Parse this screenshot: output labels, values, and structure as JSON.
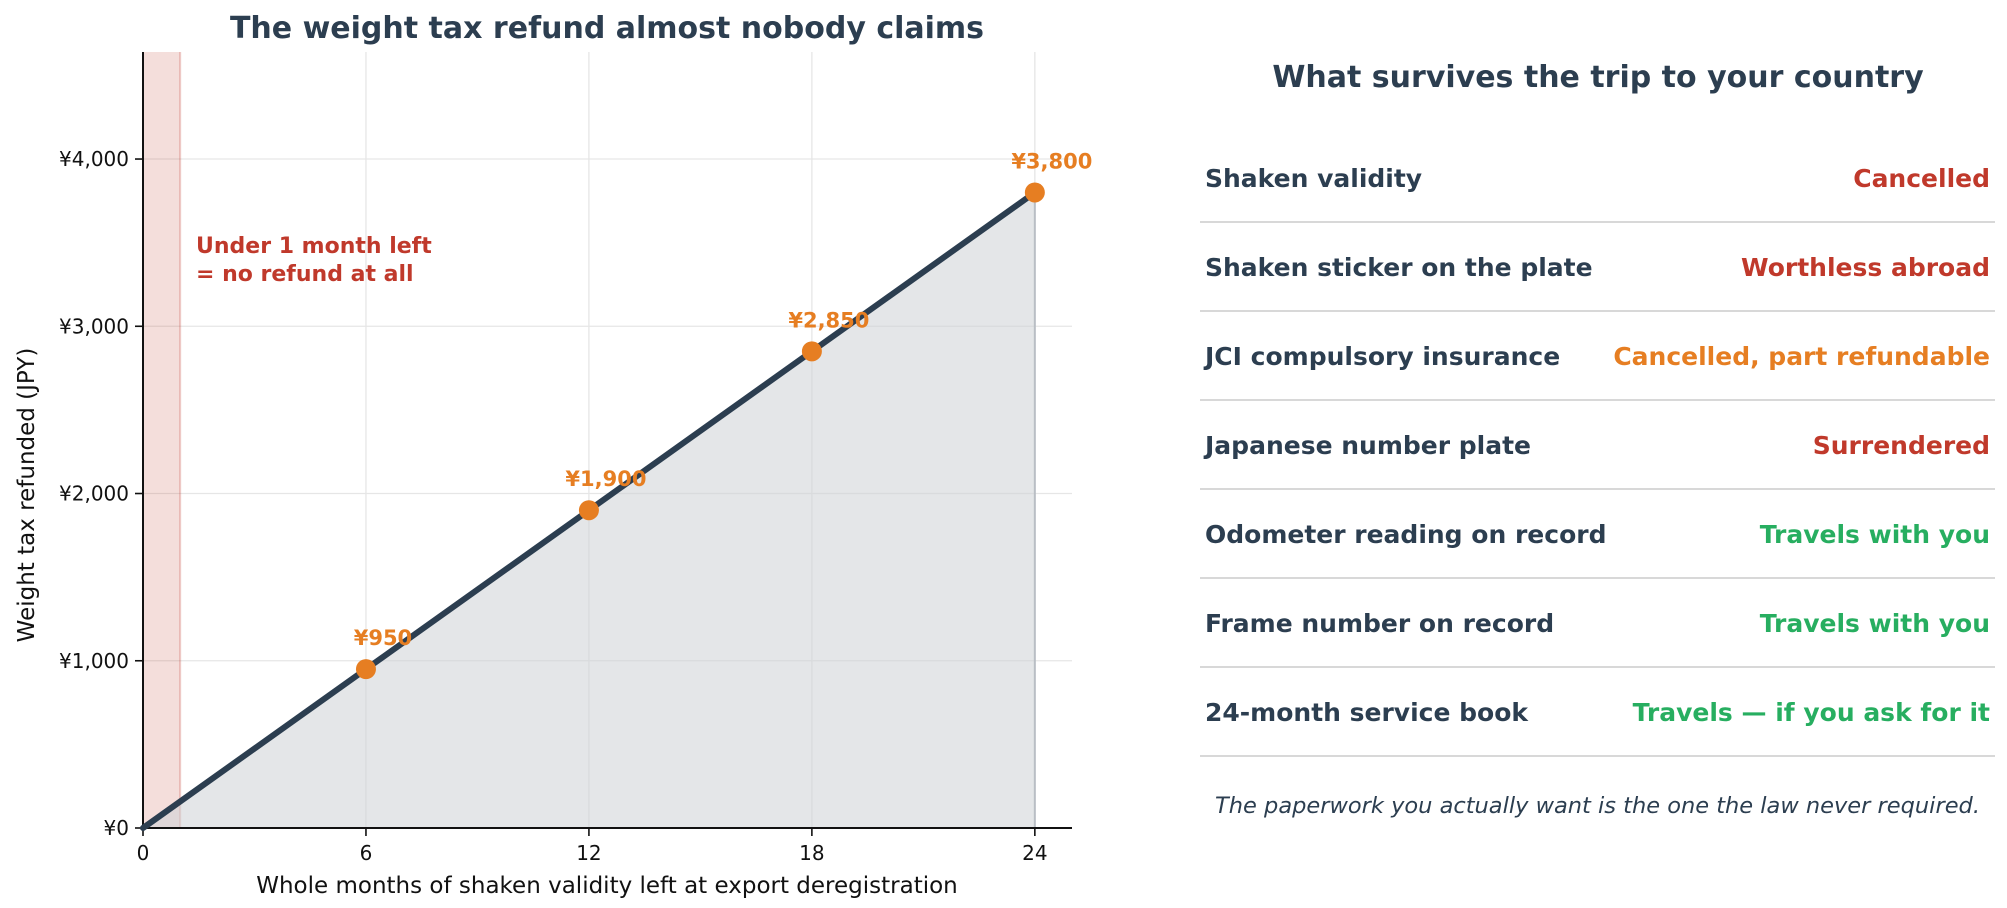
{
  "chart_data": {
    "type": "line",
    "title": "The weight tax refund almost nobody claims",
    "xlabel": "Whole months of shaken validity left at export deregistration",
    "ylabel": "Weight tax refunded (JPY)",
    "xlim": [
      0,
      25
    ],
    "ylim": [
      0,
      4640
    ],
    "x_ticks": [
      0,
      6,
      12,
      18,
      24
    ],
    "x_tick_labels": [
      "0",
      "6",
      "12",
      "18",
      "24"
    ],
    "y_ticks": [
      0,
      1000,
      2000,
      3000,
      4000
    ],
    "y_tick_labels": [
      "¥0",
      "¥1,000",
      "¥2,000",
      "¥3,000",
      "¥4,000"
    ],
    "grid": true,
    "line": {
      "x": [
        0,
        24
      ],
      "y": [
        0,
        3800
      ],
      "color": "#2c3e50"
    },
    "points": {
      "x": [
        6,
        12,
        18,
        24
      ],
      "y": [
        950,
        1900,
        2850,
        3800
      ],
      "labels": [
        "¥950",
        "¥1,900",
        "¥2,850",
        "¥3,800"
      ],
      "color": "#e67e22"
    },
    "shaded_zone": {
      "x_range": [
        0,
        1
      ],
      "color": "#c0392b",
      "annotation_lines": [
        "Under 1 month left",
        "= no refund at all"
      ]
    },
    "area_fill_color": "#cdd1d6"
  },
  "panel": {
    "title": "What survives the trip to your country",
    "rows": [
      {
        "label": "Shaken validity",
        "status": "Cancelled",
        "color": "#c0392b"
      },
      {
        "label": "Shaken sticker on the plate",
        "status": "Worthless abroad",
        "color": "#c0392b"
      },
      {
        "label": "JCI compulsory insurance",
        "status": "Cancelled, part refundable",
        "color": "#e67e22"
      },
      {
        "label": "Japanese number plate",
        "status": "Surrendered",
        "color": "#c0392b"
      },
      {
        "label": "Odometer reading on record",
        "status": "Travels with you",
        "color": "#27ae60"
      },
      {
        "label": "Frame number on record",
        "status": "Travels with you",
        "color": "#27ae60"
      },
      {
        "label": "24-month service book",
        "status": "Travels — if you ask for it",
        "color": "#27ae60"
      }
    ],
    "footnote": "The paperwork you actually want is the one the law never required."
  }
}
